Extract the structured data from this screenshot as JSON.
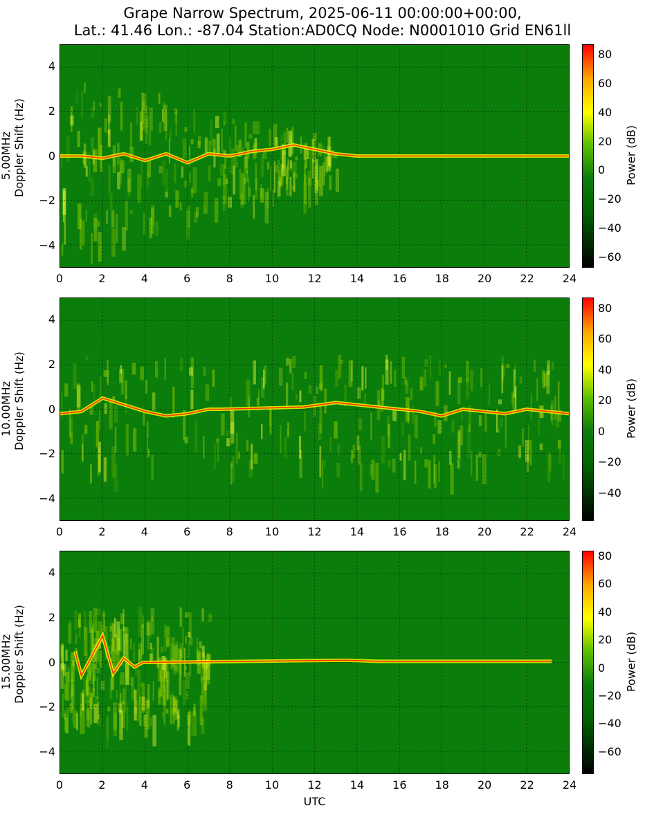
{
  "title_line1": "Grape Narrow Spectrum, 2025-06-11 00:00:00+00:00,",
  "title_line2": "Lat.: 41.46 Lon.: -87.04 Station:AD0CQ Node: N0001010 Grid EN61ll",
  "xlabel": "UTC",
  "colors": {
    "background": "#0a7d0a",
    "low": "#000000",
    "mid": "#ffff00",
    "high": "#ff0000"
  },
  "chart_data": [
    {
      "type": "heatmap",
      "frequency_label": "5.00MHz",
      "ylabel": "Doppler Shift (Hz)",
      "colorbar_label": "Power (dB)",
      "xlim": [
        0,
        24
      ],
      "ylim": [
        -5,
        5
      ],
      "x_ticks": [
        "0",
        "2",
        "4",
        "6",
        "8",
        "10",
        "12",
        "14",
        "16",
        "18",
        "20",
        "22",
        "24"
      ],
      "y_ticks": [
        "4",
        "2",
        "0",
        "−2",
        "−4"
      ],
      "colorbar_ticks": [
        "80",
        "60",
        "40",
        "20",
        "0",
        "−20",
        "−40",
        "−60"
      ],
      "colorbar_range": [
        -67,
        87
      ],
      "grid": true,
      "carrier_trace": {
        "x": [
          0,
          1,
          2,
          3,
          4,
          5,
          6,
          7,
          8,
          9,
          10,
          11,
          12,
          13,
          14,
          16,
          18,
          20,
          22,
          24
        ],
        "y": [
          0,
          0,
          -0.1,
          0.1,
          -0.2,
          0.1,
          -0.3,
          0.1,
          0,
          0.2,
          0.3,
          0.5,
          0.3,
          0.1,
          0,
          0,
          0,
          0,
          0,
          0
        ]
      }
    },
    {
      "type": "heatmap",
      "frequency_label": "10.00MHz",
      "ylabel": "Doppler Shift (Hz)",
      "colorbar_label": "Power (dB)",
      "xlim": [
        0,
        24
      ],
      "ylim": [
        -5,
        5
      ],
      "x_ticks": [
        "0",
        "2",
        "4",
        "6",
        "8",
        "10",
        "12",
        "14",
        "16",
        "18",
        "20",
        "22",
        "24"
      ],
      "y_ticks": [
        "4",
        "2",
        "0",
        "−2",
        "−4"
      ],
      "colorbar_ticks": [
        "80",
        "60",
        "40",
        "20",
        "0",
        "−20",
        "−40"
      ],
      "colorbar_range": [
        -58,
        87
      ],
      "grid": true,
      "carrier_trace": {
        "x": [
          0,
          1,
          2,
          3,
          4,
          5,
          6,
          7,
          7.6,
          11.5,
          13,
          14,
          16,
          17,
          18,
          19,
          20,
          21,
          22,
          23,
          24
        ],
        "y": [
          -0.2,
          -0.1,
          0.5,
          0.2,
          -0.1,
          -0.3,
          -0.2,
          0,
          0,
          0.1,
          0.3,
          0.2,
          0,
          -0.1,
          -0.3,
          0,
          -0.1,
          -0.2,
          0,
          -0.1,
          -0.2
        ]
      }
    },
    {
      "type": "heatmap",
      "frequency_label": "15.00MHz",
      "ylabel": "Doppler Shift (Hz)",
      "colorbar_label": "Power (dB)",
      "xlim": [
        0,
        24
      ],
      "ylim": [
        -5,
        5
      ],
      "x_ticks": [
        "0",
        "2",
        "4",
        "6",
        "8",
        "10",
        "12",
        "14",
        "16",
        "18",
        "20",
        "22",
        "24"
      ],
      "y_ticks": [
        "4",
        "2",
        "0",
        "−2",
        "−4"
      ],
      "colorbar_ticks": [
        "80",
        "60",
        "40",
        "20",
        "0",
        "−20",
        "−40",
        "−60"
      ],
      "colorbar_range": [
        -76,
        84
      ],
      "grid": true,
      "carrier_trace": {
        "x": [
          0.7,
          1,
          1.5,
          2,
          2.5,
          3,
          3.5,
          3.9,
          13.5,
          15,
          17,
          19,
          21,
          23.2
        ],
        "y": [
          0.5,
          -0.6,
          0.3,
          1.2,
          -0.5,
          0.2,
          -0.2,
          0,
          0.1,
          0.05,
          0.05,
          0.05,
          0.05,
          0.05
        ]
      }
    }
  ]
}
